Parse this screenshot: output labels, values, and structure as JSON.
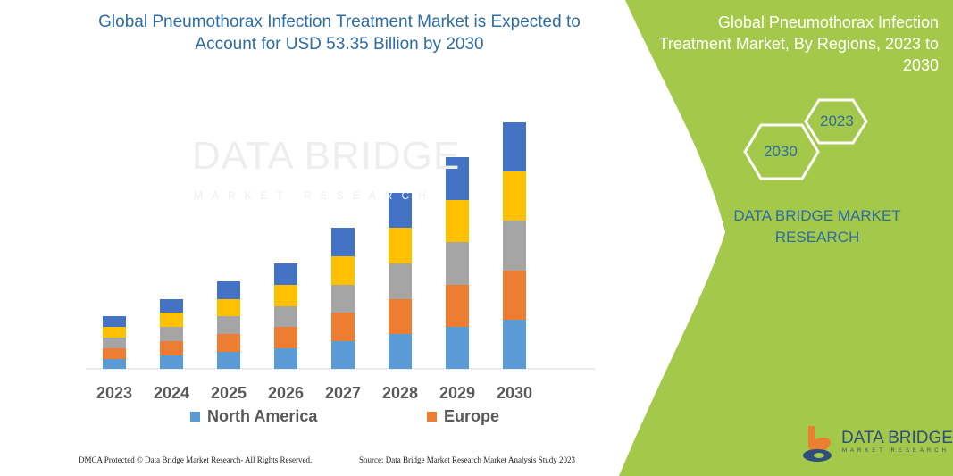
{
  "title": "Global Pneumothorax Infection Treatment Market is Expected to Account for USD 53.35 Billion by 2030",
  "side_panel": {
    "title": "Global Pneumothorax Infection Treatment Market, By Regions, 2023 to 2030",
    "hex_years": [
      "2023",
      "2030"
    ],
    "brand": "DATA BRIDGE MARKET RESEARCH",
    "logo_text": "DATA BRIDGE",
    "logo_sub": "MARKET RESEARCH",
    "color": "#a4c94a"
  },
  "watermark": {
    "text": "DATA BRIDGE",
    "sub": "MARKET RESEARCH"
  },
  "footer": {
    "left": "DMCA Protected © Data Bridge Market Research- All Rights Reserved.",
    "right": "Source: Data Bridge Market Research Market Analysis Study 2023"
  },
  "chart_data": {
    "type": "bar",
    "stacked": true,
    "categories": [
      "2023",
      "2024",
      "2025",
      "2026",
      "2027",
      "2028",
      "2029",
      "2030"
    ],
    "series": [
      {
        "name": "North America",
        "color": "#5b9bd5",
        "values": [
          11,
          15,
          19,
          23,
          31,
          39,
          47,
          55
        ]
      },
      {
        "name": "Europe",
        "color": "#ed7d31",
        "values": [
          12,
          16,
          20,
          24,
          32,
          39,
          47,
          55
        ]
      },
      {
        "color": "#a5a5a5",
        "values": [
          12,
          16,
          20,
          23,
          31,
          40,
          48,
          56
        ]
      },
      {
        "color": "#ffc000",
        "values": [
          12,
          16,
          19,
          24,
          32,
          40,
          47,
          55
        ]
      },
      {
        "color": "#4472c4",
        "values": [
          12,
          15,
          20,
          24,
          32,
          39,
          48,
          55
        ]
      }
    ],
    "legend": [
      "North America",
      "Europe"
    ],
    "legend_position": "bottom",
    "grid": false,
    "y_axis_shown": false
  }
}
